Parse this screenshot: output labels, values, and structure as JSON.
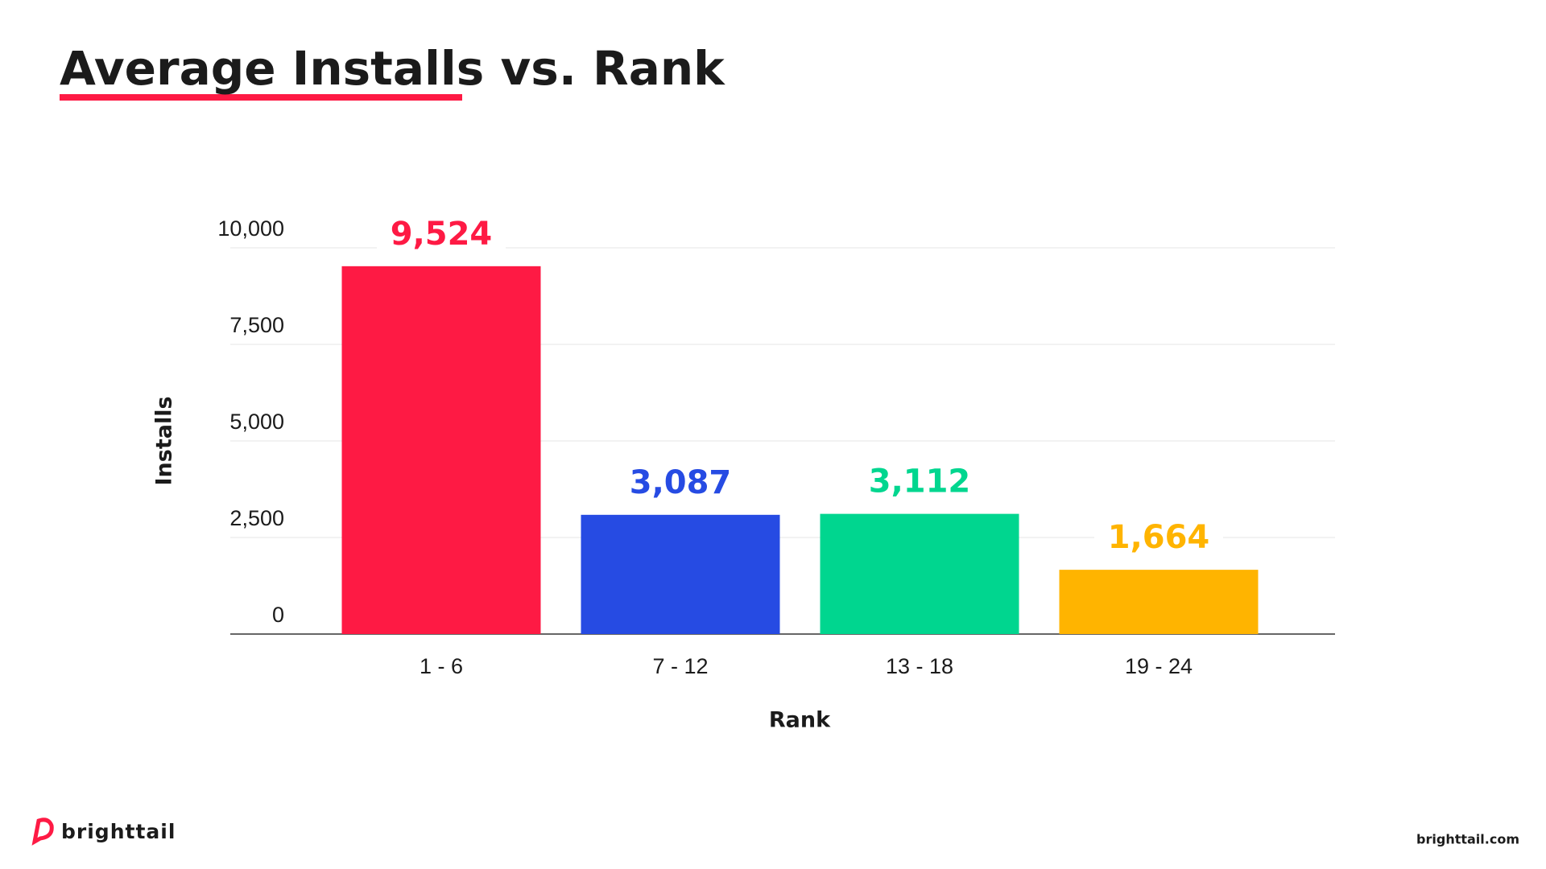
{
  "chart_data": {
    "type": "bar",
    "title": "Average Installs vs. Rank",
    "x_label": "Rank",
    "y_label": "Installs",
    "categories": [
      "1 - 6",
      "7 - 12",
      "13 - 18",
      "19 - 24"
    ],
    "values": [
      9524,
      3087,
      3112,
      1664
    ],
    "value_labels": [
      "9,524",
      "3,087",
      "3,112",
      "1,664"
    ],
    "colors": [
      "#fe1a44",
      "#264be3",
      "#00d68f",
      "#ffb400"
    ],
    "ylim": [
      0,
      10000
    ],
    "yticks": [
      0,
      {
        "value": 2500,
        "label": "2,500"
      },
      {
        "value": 5000,
        "label": "5,000"
      },
      {
        "value": 7500,
        "label": "7,500"
      },
      {
        "value": 10000,
        "label": "10,000"
      }
    ],
    "grid": true
  },
  "footer": {
    "brand": "brighttail",
    "website": "brighttail.com"
  }
}
